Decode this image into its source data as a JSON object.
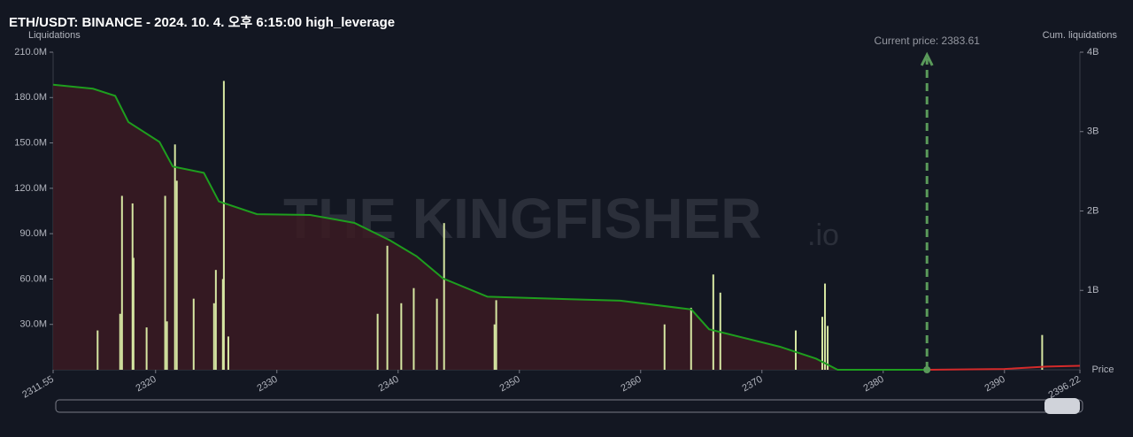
{
  "chart_data": {
    "type": "bar",
    "title": "ETH/USDT: BINANCE - 2024. 10. 4. 오후 6:15:00 high_leverage",
    "y_label": "Liquidations",
    "y2_label": "Cum. liquidations",
    "x_label": "Price",
    "watermark": "THE KINGFISHER",
    "watermark_suffix": ".io",
    "xlim": [
      2311.55,
      2396.22
    ],
    "xticks": [
      2311.55,
      2320,
      2330,
      2340,
      2350,
      2360,
      2370,
      2380,
      2390,
      2396.22
    ],
    "ylim": [
      0,
      210000000
    ],
    "yticks": [
      {
        "value": 30000000,
        "label": "30.0M"
      },
      {
        "value": 60000000,
        "label": "60.0M"
      },
      {
        "value": 90000000,
        "label": "90.0M"
      },
      {
        "value": 120000000,
        "label": "120.0M"
      },
      {
        "value": 150000000,
        "label": "150.0M"
      },
      {
        "value": 180000000,
        "label": "180.0M"
      },
      {
        "value": 210000000,
        "label": "210.0M"
      }
    ],
    "y2lim": [
      0,
      4000000000
    ],
    "y2ticks": [
      {
        "value": 1000000000,
        "label": "1B"
      },
      {
        "value": 2000000000,
        "label": "2B"
      },
      {
        "value": 3000000000,
        "label": "3B"
      },
      {
        "value": 4000000000,
        "label": "4B"
      }
    ],
    "grid": false,
    "bars": {
      "color": "#d6e6a2",
      "x": [
        2315.22,
        2317.08,
        2317.23,
        2318.1,
        2318.18,
        2319.26,
        2320.79,
        2320.94,
        2321.6,
        2321.75,
        2323.14,
        2324.82,
        2324.97,
        2325.55,
        2325.63,
        2326.0,
        2338.31,
        2339.11,
        2340.26,
        2341.29,
        2343.2,
        2343.79,
        2347.95,
        2348.09,
        2361.97,
        2364.16,
        2365.99,
        2366.57,
        2372.79,
        2374.98,
        2375.2,
        2375.42,
        2393.11
      ],
      "values": [
        26000000,
        37000000,
        115000000,
        110000000,
        74000000,
        28000000,
        115000000,
        32000000,
        149000000,
        125000000,
        47000000,
        44000000,
        66000000,
        60000000,
        191000000,
        22000000,
        37000000,
        82000000,
        44000000,
        54000000,
        47000000,
        97000000,
        30000000,
        46000000,
        30000000,
        41000000,
        63000000,
        51000000,
        26000000,
        35000000,
        57000000,
        29000000,
        23000000
      ]
    },
    "series": [
      {
        "color": "#1e9e1e",
        "axis": "y2",
        "x": [
          2311.55,
          2314.84,
          2316.67,
          2317.76,
          2320.32,
          2321.42,
          2323.98,
          2325.22,
          2328.36,
          2332.75,
          2336.4,
          2339.33,
          2341.52,
          2343.71,
          2347.37,
          2358.33,
          2364.18,
          2365.64,
          2371.49,
          2374.47,
          2376.24,
          2383.61
        ],
        "values": [
          3590000000,
          3540000000,
          3450000000,
          3120000000,
          2870000000,
          2560000000,
          2480000000,
          2120000000,
          1960000000,
          1950000000,
          1850000000,
          1630000000,
          1430000000,
          1150000000,
          920000000,
          870000000,
          760000000,
          510000000,
          290000000,
          140000000,
          0,
          0
        ]
      },
      {
        "color": "#d42a2a",
        "axis": "y2",
        "x": [
          2383.61,
          2390.0,
          2393.5,
          2396.22
        ],
        "values": [
          0,
          10000000,
          40000000,
          50000000
        ]
      }
    ],
    "current_price": {
      "value": 2383.61,
      "label": "Current price: 2383.61"
    }
  }
}
